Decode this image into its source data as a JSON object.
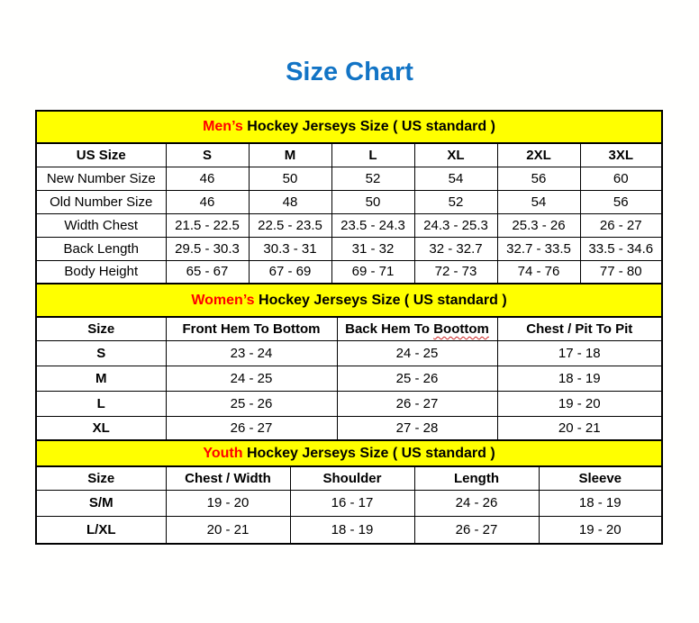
{
  "page": {
    "title": "Size Chart"
  },
  "colors": {
    "title_blue": "#1274C5",
    "banner_yellow": "#FFFF00",
    "accent_red": "#FF0000",
    "grid_black": "#000000",
    "spellcheck_red": "#CC2222",
    "page_bg": "#FFFFFE"
  },
  "tables": [
    {
      "id": "mens",
      "banner": {
        "highlight": "Men’s",
        "rest": " Hockey Jerseys Size ( US standard )"
      },
      "columns": [
        "US Size",
        "S",
        "M",
        "L",
        "XL",
        "2XL",
        "3XL"
      ],
      "rows": [
        {
          "label": "New Number Size",
          "values": [
            "46",
            "50",
            "52",
            "54",
            "56",
            "60"
          ]
        },
        {
          "label": "Old Number Size",
          "values": [
            "46",
            "48",
            "50",
            "52",
            "54",
            "56"
          ]
        },
        {
          "label": "Width Chest",
          "values": [
            "21.5 - 22.5",
            "22.5 - 23.5",
            "23.5 - 24.3",
            "24.3 - 25.3",
            "25.3 - 26",
            "26 - 27"
          ]
        },
        {
          "label": "Back Length",
          "values": [
            "29.5 - 30.3",
            "30.3 - 31",
            "31 - 32",
            "32 - 32.7",
            "32.7 - 33.5",
            "33.5 - 34.6"
          ]
        },
        {
          "label": "Body Height",
          "values": [
            "65 - 67",
            "67 - 69",
            "69 - 71",
            "72 - 73",
            "74 - 76",
            "77 - 80"
          ]
        }
      ]
    },
    {
      "id": "womens",
      "banner": {
        "highlight": "Women’s",
        "rest": " Hockey Jerseys Size ( US standard )"
      },
      "columns": [
        "Size",
        "Front Hem To Bottom",
        "Back Hem To Boottom",
        "Chest / Pit To Pit"
      ],
      "spellcheck": {
        "column_index": 2,
        "word": "Boottom"
      },
      "rows": [
        {
          "label": "S",
          "values": [
            "23 - 24",
            "24 - 25",
            "17 - 18"
          ]
        },
        {
          "label": "M",
          "values": [
            "24 - 25",
            "25 - 26",
            "18 - 19"
          ]
        },
        {
          "label": "L",
          "values": [
            "25 - 26",
            "26 - 27",
            "19 - 20"
          ]
        },
        {
          "label": "XL",
          "values": [
            "26 - 27",
            "27 - 28",
            "20 - 21"
          ]
        }
      ]
    },
    {
      "id": "youth",
      "banner": {
        "highlight": "Youth",
        "rest": " Hockey Jerseys Size ( US standard )"
      },
      "columns": [
        "Size",
        "Chest / Width",
        "Shoulder",
        "Length",
        "Sleeve"
      ],
      "rows": [
        {
          "label": "S/M",
          "values": [
            "19 - 20",
            "16 - 17",
            "24 - 26",
            "18 - 19"
          ]
        },
        {
          "label": "L/XL",
          "values": [
            "20 - 21",
            "18 - 19",
            "26 - 27",
            "19 - 20"
          ]
        }
      ]
    }
  ]
}
